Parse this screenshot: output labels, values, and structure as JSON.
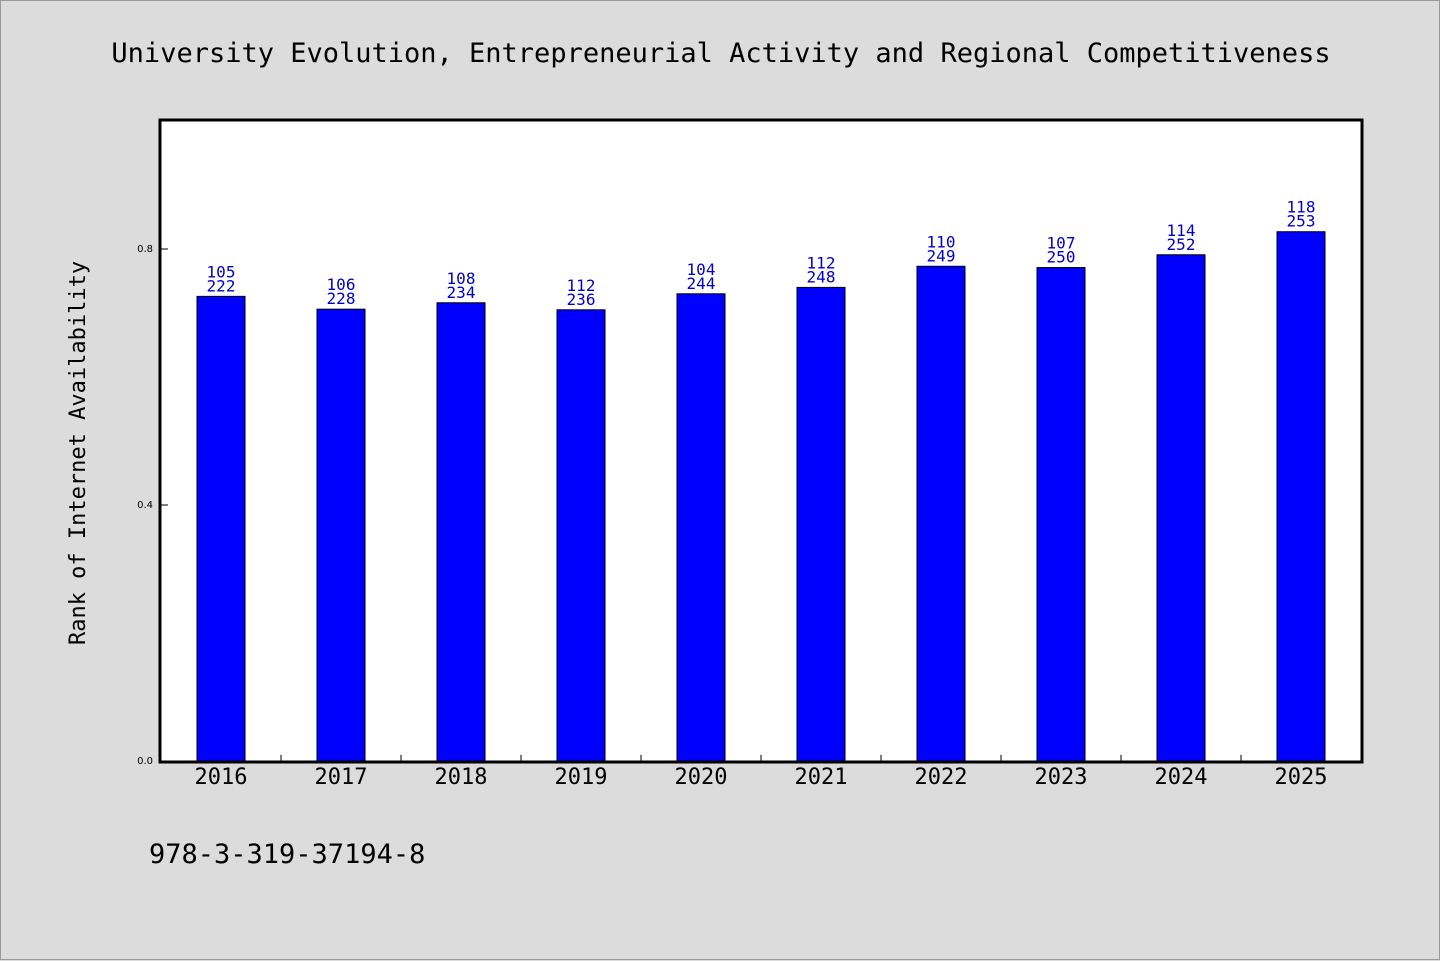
{
  "chart_data": {
    "type": "bar",
    "title": "University Evolution, Entrepreneurial Activity and Regional Competitiveness",
    "xlabel": "",
    "ylabel": "Rank of Internet Availability",
    "categories": [
      "2016",
      "2017",
      "2018",
      "2019",
      "2020",
      "2021",
      "2022",
      "2023",
      "2024",
      "2025"
    ],
    "values": [
      0.726,
      0.706,
      0.716,
      0.705,
      0.73,
      0.74,
      0.773,
      0.771,
      0.791,
      0.827
    ],
    "labels_top": [
      "105",
      "106",
      "108",
      "112",
      "104",
      "112",
      "110",
      "107",
      "114",
      "118"
    ],
    "labels_bottom": [
      "222",
      "228",
      "234",
      "236",
      "244",
      "248",
      "249",
      "250",
      "252",
      "253"
    ],
    "ylim": [
      0,
      1.0
    ],
    "yticks": [
      "0.0",
      "0.4",
      "0.8"
    ],
    "ytick_values": [
      0.0,
      0.4,
      0.8
    ],
    "bar_color": "#0000ff",
    "label_color": "#0000cc",
    "grid": false,
    "legend": "none"
  },
  "footer": {
    "isbn": "978-3-319-37194-8"
  },
  "colors": {
    "background": "#dcdcdc",
    "plot_background": "#ffffff",
    "axis": "#000000"
  }
}
